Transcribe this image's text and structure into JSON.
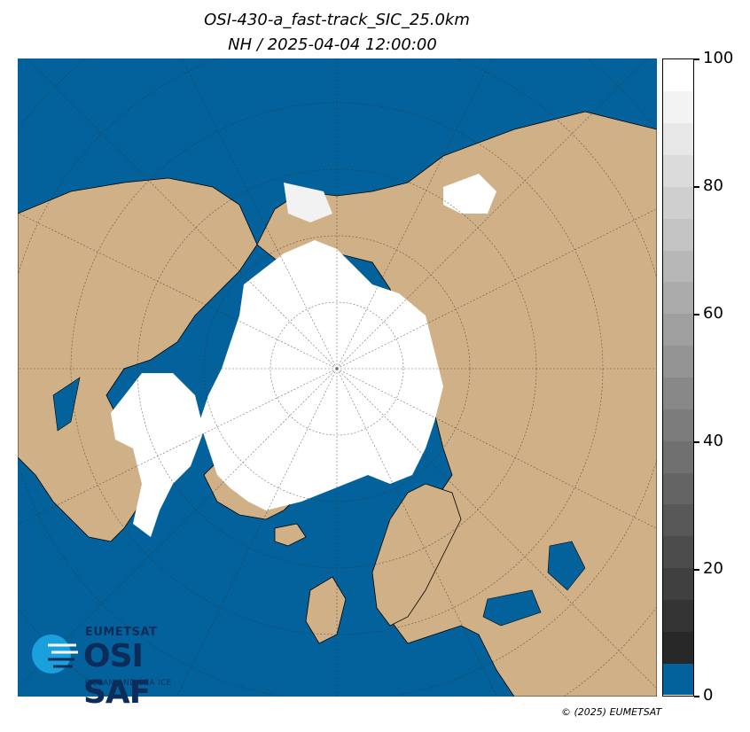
{
  "title": {
    "line1": "OSI-430-a_fast-track_SIC_25.0km",
    "line2": "NH / 2025-04-04 12:00:00"
  },
  "colorbar": {
    "ticks": [
      "100",
      "80",
      "60",
      "40",
      "20",
      "0"
    ],
    "min": 0,
    "max": 100,
    "open_water_color": "#03629b",
    "land_color": "#d0b086",
    "ice_color": "#ffffff"
  },
  "logo": {
    "org": "EUMETSAT",
    "name": "OSI SAF",
    "tagline": "OCEAN AND SEA ICE"
  },
  "copyright": "© (2025) EUMETSAT"
}
